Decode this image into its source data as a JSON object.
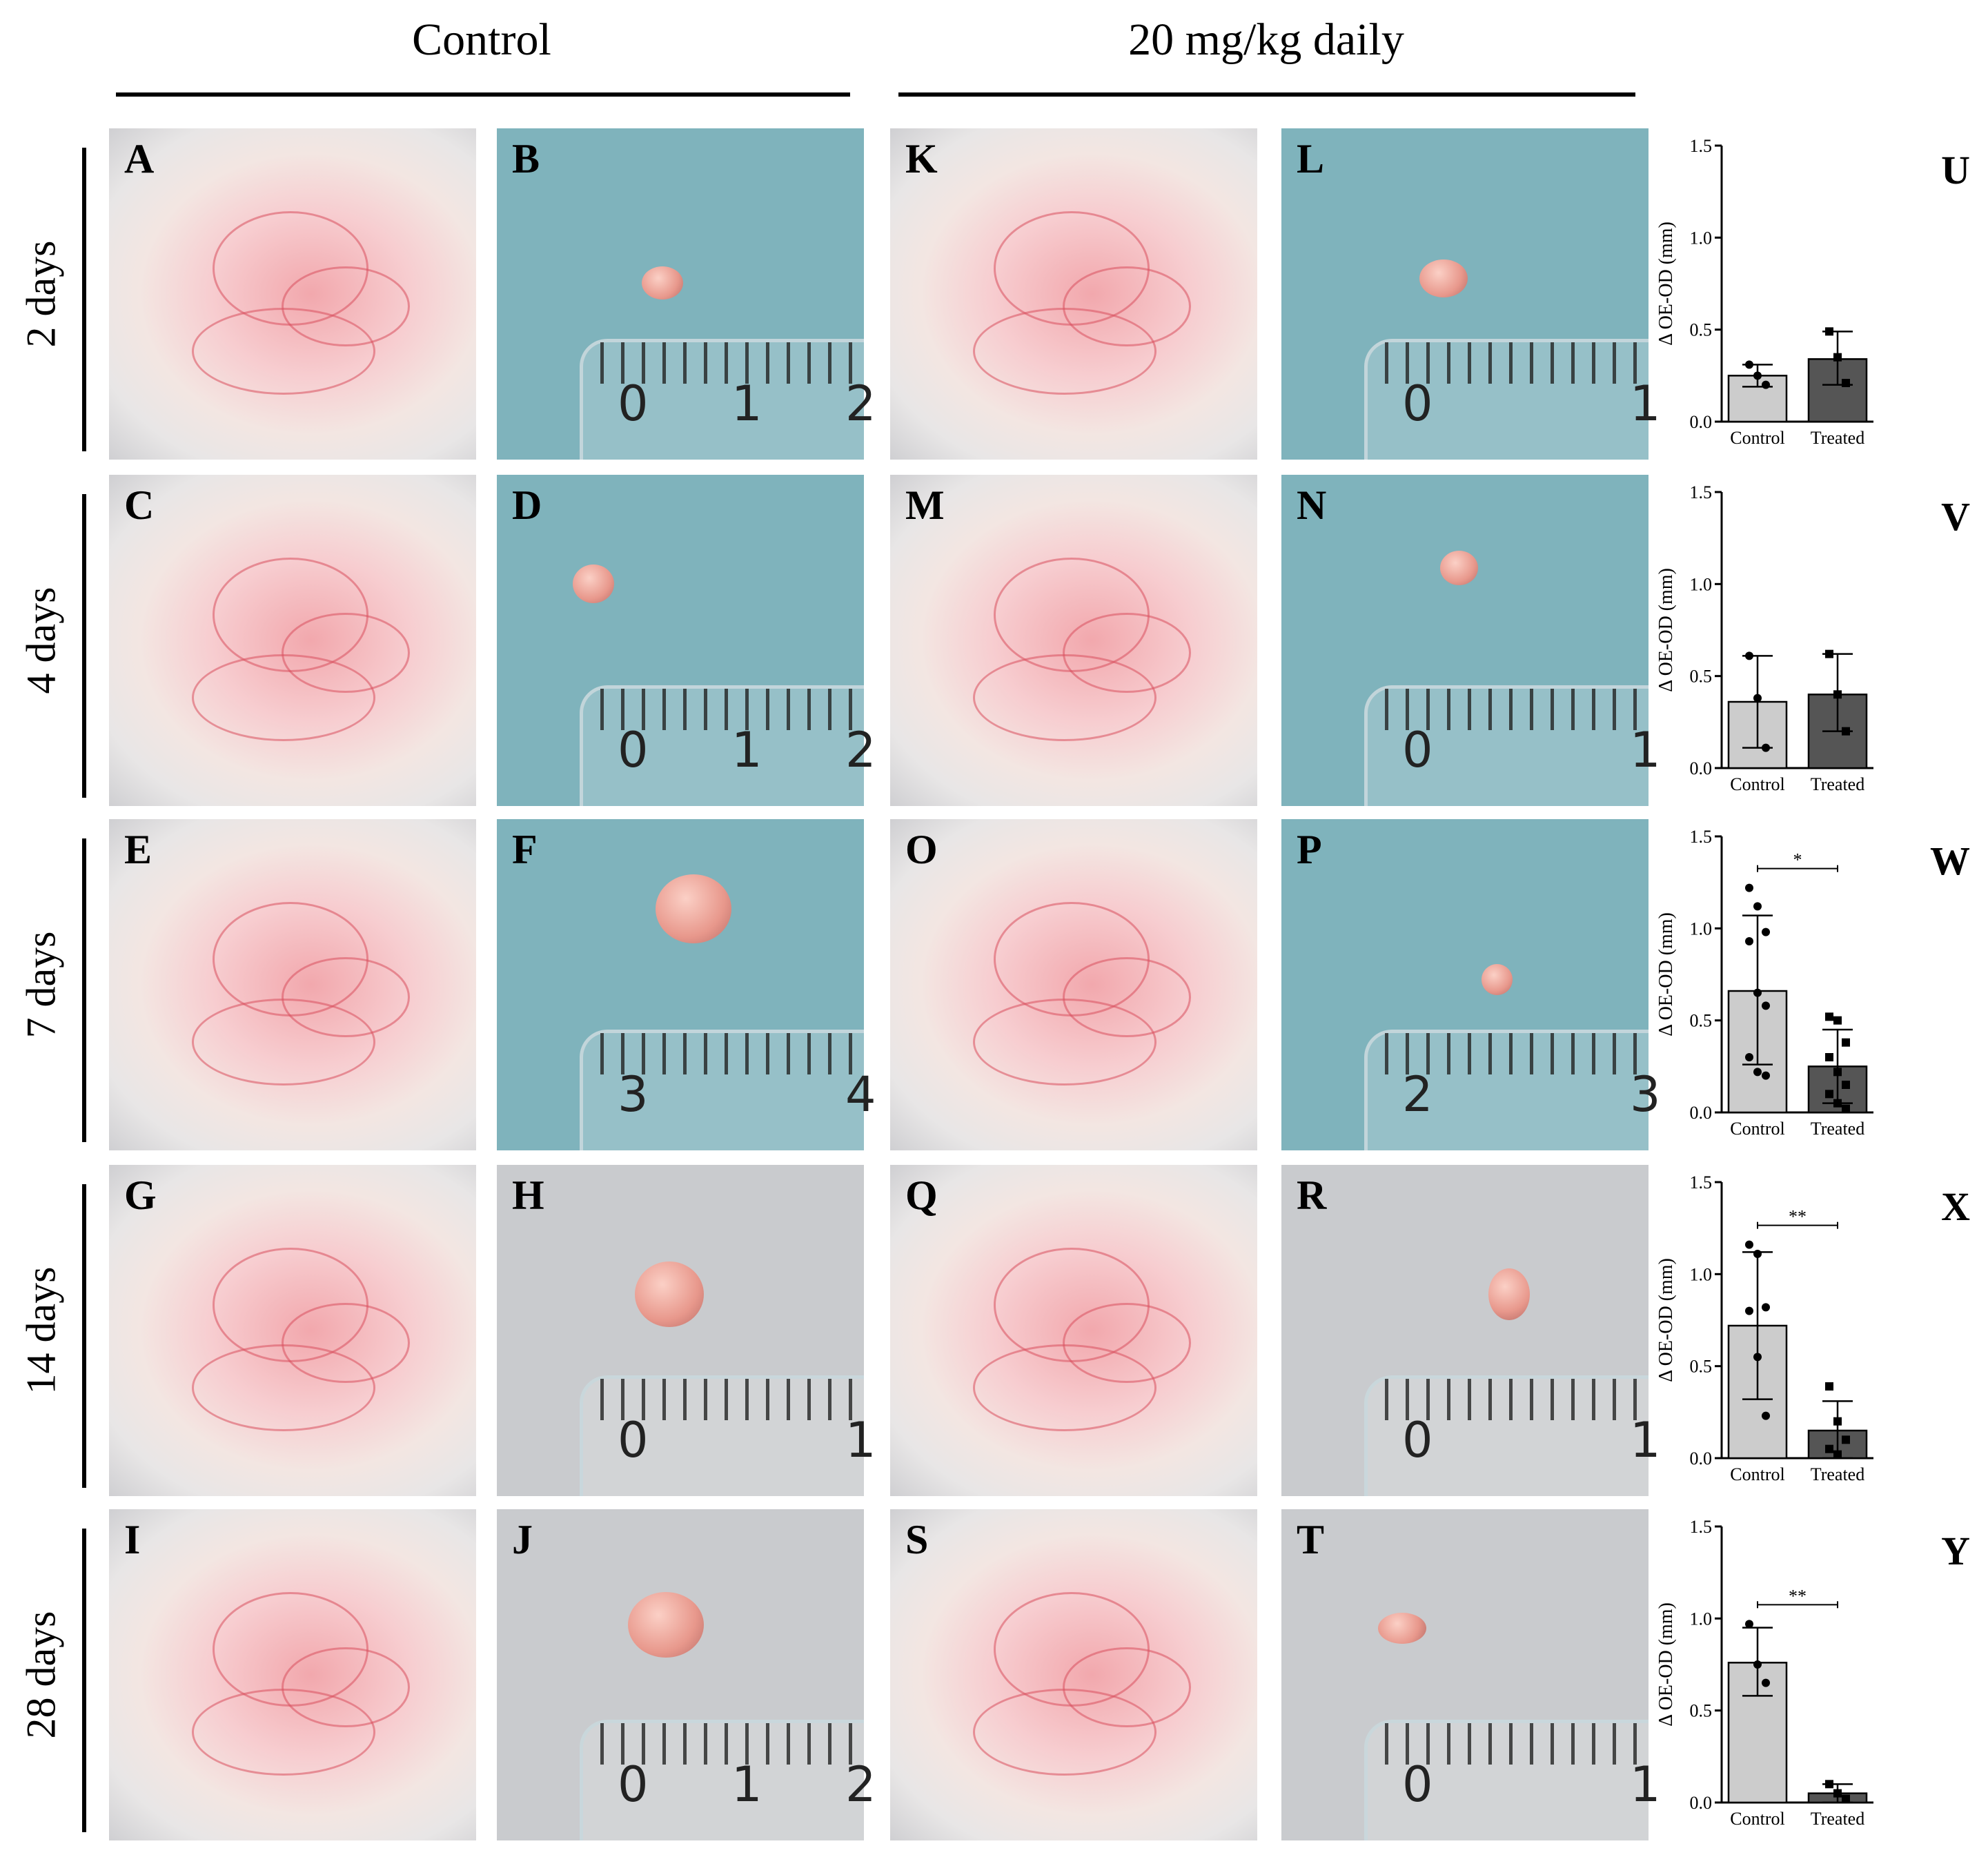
{
  "columns": [
    {
      "label": "Control"
    },
    {
      "label": "20 mg/kg daily"
    }
  ],
  "rows": [
    {
      "label": "2 days"
    },
    {
      "label": "4 days"
    },
    {
      "label": "7 days"
    },
    {
      "label": "14 days"
    },
    {
      "label": "28 days"
    }
  ],
  "photo_panels": [
    {
      "letter": "A",
      "kind": "animal"
    },
    {
      "letter": "B",
      "kind": "tumor",
      "bg": "blue",
      "ruler_numbers": [
        "0",
        "1",
        "2"
      ]
    },
    {
      "letter": "K",
      "kind": "animal"
    },
    {
      "letter": "L",
      "kind": "tumor",
      "bg": "blue",
      "ruler_numbers": [
        "0",
        "1"
      ]
    },
    {
      "letter": "C",
      "kind": "animal"
    },
    {
      "letter": "D",
      "kind": "tumor",
      "bg": "blue",
      "ruler_numbers": [
        "0",
        "1",
        "2"
      ]
    },
    {
      "letter": "M",
      "kind": "animal"
    },
    {
      "letter": "N",
      "kind": "tumor",
      "bg": "blue",
      "ruler_numbers": [
        "0",
        "1"
      ]
    },
    {
      "letter": "E",
      "kind": "animal"
    },
    {
      "letter": "F",
      "kind": "tumor",
      "bg": "blue",
      "ruler_numbers": [
        "3",
        "4"
      ]
    },
    {
      "letter": "O",
      "kind": "animal"
    },
    {
      "letter": "P",
      "kind": "tumor",
      "bg": "blue",
      "ruler_numbers": [
        "2",
        "3"
      ]
    },
    {
      "letter": "G",
      "kind": "animal"
    },
    {
      "letter": "H",
      "kind": "tumor",
      "bg": "gray",
      "ruler_numbers": [
        "0",
        "1"
      ]
    },
    {
      "letter": "Q",
      "kind": "animal"
    },
    {
      "letter": "R",
      "kind": "tumor",
      "bg": "gray",
      "ruler_numbers": [
        "0",
        "1"
      ]
    },
    {
      "letter": "I",
      "kind": "animal"
    },
    {
      "letter": "J",
      "kind": "tumor",
      "bg": "gray",
      "ruler_numbers": [
        "0",
        "1",
        "2"
      ]
    },
    {
      "letter": "S",
      "kind": "animal"
    },
    {
      "letter": "T",
      "kind": "tumor",
      "bg": "gray",
      "ruler_numbers": [
        "0",
        "1"
      ]
    }
  ],
  "colors": {
    "control_bar": "#cccccc",
    "treated_bar": "#555555",
    "blue_background": "#7fb3bc",
    "gray_background": "#c9cbce",
    "tumor": "#e8988c"
  },
  "chart_data": [
    {
      "type": "bar",
      "panel": "U",
      "categories": [
        "Control",
        "Treated"
      ],
      "values": [
        0.25,
        0.34
      ],
      "error": [
        [
          0.19,
          0.31
        ],
        [
          0.2,
          0.49
        ]
      ],
      "points": [
        [
          0.31,
          0.25,
          0.2
        ],
        [
          0.49,
          0.35,
          0.21
        ]
      ],
      "ylabel": "Δ OE-OD (mm)",
      "ylim": [
        0,
        1.5
      ],
      "yticks": [
        "0.0",
        "0.5",
        "1.0",
        "1.5"
      ],
      "significance": ""
    },
    {
      "type": "bar",
      "panel": "V",
      "categories": [
        "Control",
        "Treated"
      ],
      "values": [
        0.36,
        0.4
      ],
      "error": [
        [
          0.11,
          0.61
        ],
        [
          0.2,
          0.62
        ]
      ],
      "points": [
        [
          0.61,
          0.38,
          0.11
        ],
        [
          0.62,
          0.4,
          0.2
        ]
      ],
      "ylabel": "Δ OE-OD (mm)",
      "ylim": [
        0,
        1.5
      ],
      "yticks": [
        "0.0",
        "0.5",
        "1.0",
        "1.5"
      ],
      "significance": ""
    },
    {
      "type": "bar",
      "panel": "W",
      "categories": [
        "Control",
        "Treated"
      ],
      "values": [
        0.66,
        0.25
      ],
      "error": [
        [
          0.26,
          1.07
        ],
        [
          0.05,
          0.45
        ]
      ],
      "points": [
        [
          1.22,
          1.12,
          0.98,
          0.93,
          0.65,
          0.58,
          0.3,
          0.22,
          0.2
        ],
        [
          0.52,
          0.5,
          0.38,
          0.3,
          0.22,
          0.15,
          0.1,
          0.05,
          0.02
        ]
      ],
      "ylabel": "Δ OE-OD (mm)",
      "ylim": [
        0,
        1.5
      ],
      "yticks": [
        "0.0",
        "0.5",
        "1.0",
        "1.5"
      ],
      "significance": "*"
    },
    {
      "type": "bar",
      "panel": "X",
      "categories": [
        "Control",
        "Treated"
      ],
      "values": [
        0.72,
        0.15
      ],
      "error": [
        [
          0.32,
          1.12
        ],
        [
          0.0,
          0.31
        ]
      ],
      "points": [
        [
          1.16,
          1.11,
          0.82,
          0.8,
          0.55,
          0.23
        ],
        [
          0.39,
          0.2,
          0.1,
          0.05,
          0.02
        ]
      ],
      "ylabel": "Δ OE-OD (mm)",
      "ylim": [
        0,
        1.5
      ],
      "yticks": [
        "0.0",
        "0.5",
        "1.0",
        "1.5"
      ],
      "significance": "**"
    },
    {
      "type": "bar",
      "panel": "Y",
      "categories": [
        "Control",
        "Treated"
      ],
      "values": [
        0.76,
        0.05
      ],
      "error": [
        [
          0.58,
          0.95
        ],
        [
          0.0,
          0.1
        ]
      ],
      "points": [
        [
          0.97,
          0.75,
          0.65
        ],
        [
          0.1,
          0.05,
          0.02
        ]
      ],
      "ylabel": "Δ OE-OD (mm)",
      "ylim": [
        0,
        1.5
      ],
      "yticks": [
        "0.0",
        "0.5",
        "1.0",
        "1.5"
      ],
      "significance": "**"
    }
  ]
}
